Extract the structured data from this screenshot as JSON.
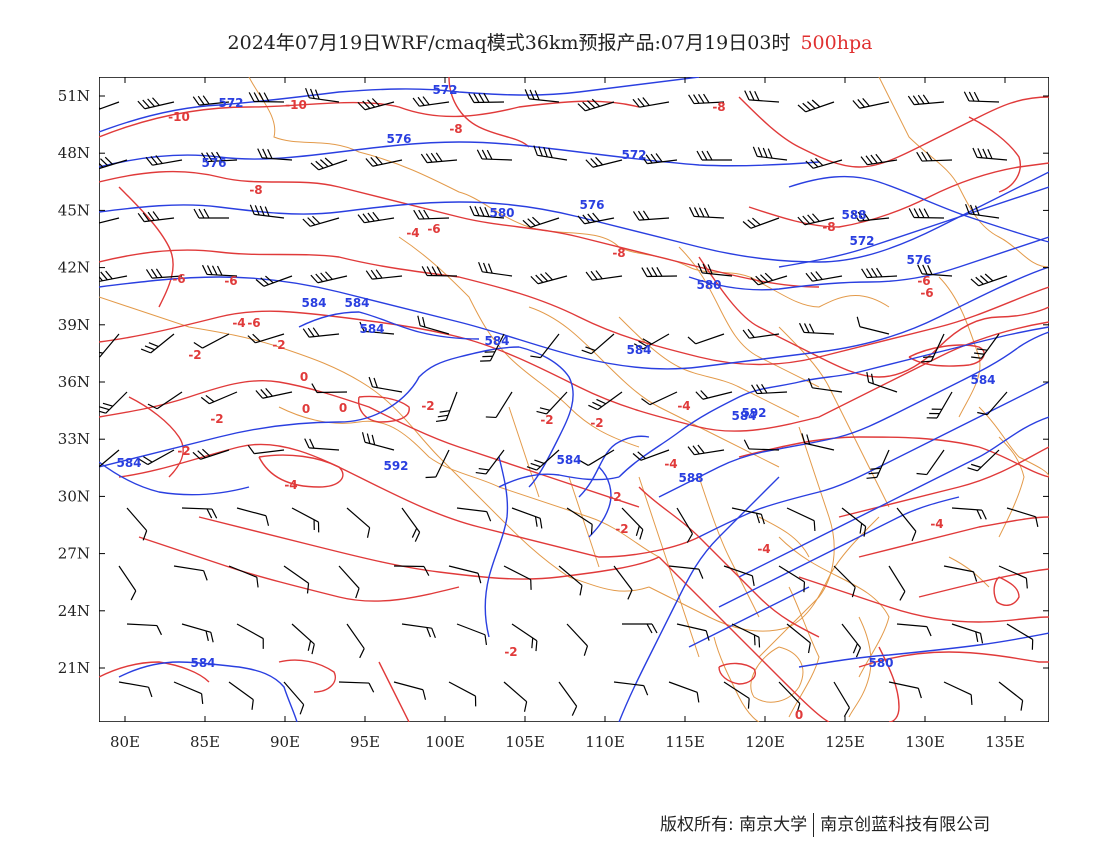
{
  "title": {
    "main": "2024年07月19日WRF/cmaq模式36km预报产品:07月19日03时",
    "level": "500hpa",
    "level_color": "#e03030"
  },
  "axes": {
    "lon_ticks": [
      "80E",
      "85E",
      "90E",
      "95E",
      "100E",
      "105E",
      "110E",
      "115E",
      "120E",
      "125E",
      "130E",
      "135E"
    ],
    "lat_ticks": [
      "51N",
      "48N",
      "45N",
      "42N",
      "39N",
      "36N",
      "33N",
      "30N",
      "27N",
      "24N",
      "21N"
    ]
  },
  "contours": {
    "geopotential_color": "#2a3fe0",
    "temperature_color": "#e03a3a",
    "border_color": "#e39a4a",
    "wind_barb_color": "#000000",
    "geopotential_labels": [
      "572",
      "572",
      "576",
      "576",
      "572",
      "580",
      "576",
      "584",
      "588",
      "572",
      "576",
      "580",
      "584",
      "584",
      "584",
      "584",
      "584",
      "584",
      "588",
      "592",
      "584",
      "592",
      "584",
      "584",
      "580"
    ],
    "temperature_labels": [
      "-10",
      "-10",
      "-8",
      "-8",
      "-6",
      "-8",
      "-8",
      "-4",
      "-6",
      "-8",
      "-6",
      "-6",
      "-4",
      "-2",
      "-2",
      "0",
      "0",
      "-2",
      "-2",
      "-4",
      "-2",
      "-2",
      "0",
      "-2",
      "-2",
      "-4",
      "-4",
      "-2",
      "-4",
      "-4",
      "-6",
      "-6",
      "-2",
      "0"
    ]
  },
  "footer": {
    "copyright": "版权所有: 南京大学",
    "company": "南京创蓝科技有限公司"
  }
}
